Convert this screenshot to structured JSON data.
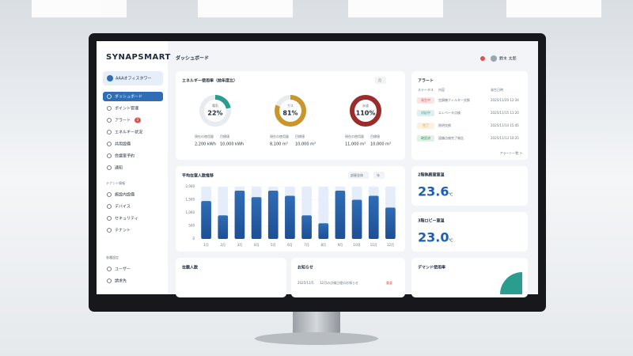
{
  "app": {
    "logo": "SYNAPSMART",
    "page_title": "ダッシュボード",
    "building": "AAAオフィスタワー",
    "user": "鈴木 太郎"
  },
  "sidebar": {
    "items": [
      "ダッシュボード",
      "ポイント管理",
      "アラート",
      "エネルギー状況",
      "共用設備",
      "会議室予約",
      "通知"
    ],
    "alert_badge": 2,
    "section_tenant": "テナント情報",
    "tenant_items": [
      "施設内設備",
      "デバイス",
      "セキュリティ",
      "テナント"
    ],
    "section_settings": "各種設定",
    "settings_items": [
      "ユーザー",
      "請求先"
    ]
  },
  "energy": {
    "title": "エネルギー使用率（前年度比）",
    "period": "月",
    "gauges": [
      {
        "name": "電気",
        "value": 22,
        "value_label": "22%",
        "color": "#2a9d8f",
        "current_label": "現在の使用量",
        "current": "2,200 kWh",
        "target_label": "目標値",
        "target": "10,000 kWh"
      },
      {
        "name": "ガス",
        "value": 81,
        "value_label": "81%",
        "color": "#c9962c",
        "current_label": "現在の使用量",
        "current": "8,100 m³",
        "target_label": "目標値",
        "target": "10,000 m³"
      },
      {
        "name": "水道",
        "value": 110,
        "value_label": "110%",
        "color": "#9b2c2c",
        "current_label": "現在の使用量",
        "current": "11,000 m³",
        "target_label": "目標値",
        "target": "10,000 m³"
      }
    ]
  },
  "alerts": {
    "title": "アラート",
    "columns": [
      "ステータス",
      "内容",
      "発生日時"
    ],
    "rows": [
      {
        "status": "発生中",
        "color": "#d9534f",
        "text": "空調機フィルター交換",
        "date": "2025/11/20 12:34"
      },
      {
        "status": "対応中",
        "color": "#2a9d8f",
        "text": "エレベータ点検",
        "date": "2025/11/15 11:20"
      },
      {
        "status": "完了",
        "color": "#e0a030",
        "text": "照明交換",
        "date": "2025/11/14 15:45"
      },
      {
        "status": "確認済",
        "color": "#3a9d5d",
        "text": "設備点検完了報告",
        "date": "2025/11/13 10:25"
      }
    ],
    "more": "アラート一覧 >"
  },
  "chart_data": {
    "type": "bar",
    "title": "平均在室人数推移",
    "filter": "部屋全体",
    "period": "年",
    "categories": [
      "1月",
      "2月",
      "3月",
      "4月",
      "5月",
      "6月",
      "7月",
      "8月",
      "9月",
      "10月",
      "11月",
      "12月"
    ],
    "values": [
      1450,
      900,
      1850,
      1600,
      1850,
      1650,
      900,
      600,
      1850,
      1500,
      1650,
      1200
    ],
    "color": "#2f6db5",
    "ylim": [
      0,
      2000
    ],
    "yticks": [
      0,
      500,
      {
        "value": 1000,
        "label": "1,000"
      },
      {
        "value": 1500,
        "label": "1,500"
      },
      {
        "value": 2000,
        "label": "2,000"
      }
    ]
  },
  "temperatures": [
    {
      "title": "2階執務室室温",
      "value": 23.6,
      "unit": "℃"
    },
    {
      "title": "3階ロビー室温",
      "value": 23.0,
      "unit": "℃"
    }
  ],
  "bottom_cards": [
    "在籍人数",
    "お知らせ",
    "デマンド使用率"
  ],
  "notice": {
    "date": "2025/11/5",
    "text": "12月の点検日程のお知らせ",
    "tag": "重要"
  }
}
